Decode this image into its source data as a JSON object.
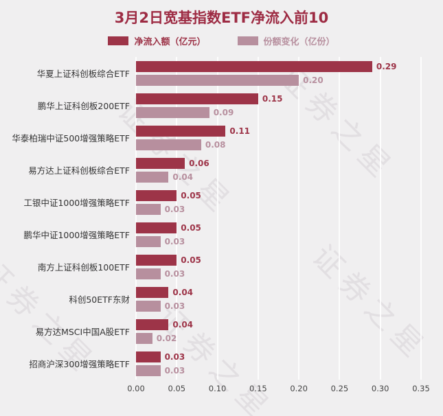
{
  "title": "3月2日宽基指数ETF净流入前10",
  "watermark_text": "证券之星",
  "colors": {
    "title": "#9d2b43",
    "net_inflow": "#9d3448",
    "share_change": "#b78f9e",
    "background": "#f0eff0",
    "gridline": "#ffffff"
  },
  "chart_data": {
    "type": "bar",
    "orientation": "horizontal",
    "title": "3月2日宽基指数ETF净流入前10",
    "categories": [
      "华夏上证科创板综合ETF",
      "鹏华上证科创板200ETF",
      "华泰柏瑞中证500增强策略ETF",
      "易方达上证科创板综合ETF",
      "工银中证1000增强策略ETF",
      "鹏华中证1000增强策略ETF",
      "南方上证科创板100ETF",
      "科创50ETF东财",
      "易方达MSCI中国A股ETF",
      "招商沪深300增强策略ETF"
    ],
    "series": [
      {
        "name": "净流入额（亿元）",
        "color": "#9d3448",
        "values": [
          0.29,
          0.15,
          0.11,
          0.06,
          0.05,
          0.05,
          0.05,
          0.04,
          0.04,
          0.03
        ]
      },
      {
        "name": "份额变化（亿份）",
        "color": "#b78f9e",
        "values": [
          0.2,
          0.09,
          0.08,
          0.04,
          0.03,
          0.03,
          0.03,
          0.03,
          0.02,
          0.03
        ]
      }
    ],
    "xlim": [
      0,
      0.35
    ],
    "xticks": [
      "0.00",
      "0.05",
      "0.10",
      "0.15",
      "0.20",
      "0.25",
      "0.30",
      "0.35"
    ],
    "grid": true,
    "legend_position": "top"
  }
}
